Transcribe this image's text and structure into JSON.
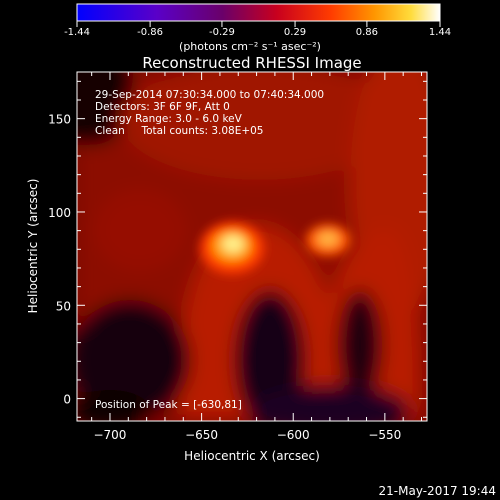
{
  "colorbar": {
    "ticks": [
      "-1.44",
      "-0.86",
      "-0.29",
      "0.29",
      "0.86",
      "1.44"
    ],
    "unit_label": "(photons cm⁻² s⁻¹ asec⁻²)",
    "range": [
      -1.44,
      1.44
    ],
    "colors": [
      "#0000ff",
      "#5a00c8",
      "#6a006a",
      "#c8001e",
      "#ff3c00",
      "#ff9600",
      "#ffdc3c",
      "#ffffff"
    ]
  },
  "chart_data": {
    "type": "heatmap",
    "title": "Reconstructed RHESSI Image",
    "xlabel": "Heliocentric X (arcsec)",
    "ylabel": "Heliocentric Y (arcsec)",
    "xlim": [
      -718,
      -527
    ],
    "ylim": [
      -12,
      175
    ],
    "xticks": [
      -700,
      -650,
      -600,
      -550
    ],
    "yticks": [
      0,
      50,
      100,
      150
    ],
    "annotations": [
      "29-Sep-2014 07:30:34.000 to 07:40:34.000",
      "Detectors: 3F 6F 9F, Att 0",
      "Energy Range: 3.0 - 6.0 keV",
      "Clean     Total counts: 3.08E+05"
    ],
    "peak_label": "Position of Peak = [-630,81]",
    "peak": [
      -630,
      81
    ],
    "secondary_peak": [
      -575,
      84
    ]
  },
  "footer": {
    "date": "21-May-2017 19:44"
  }
}
